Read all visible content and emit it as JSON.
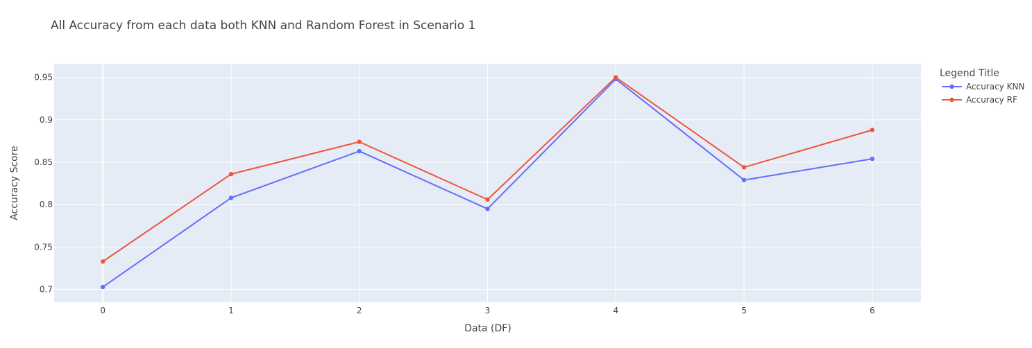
{
  "chart_data": {
    "type": "line",
    "title": "All Accuracy from each data both KNN and Random Forest in Scenario 1",
    "xlabel": "Data (DF)",
    "ylabel": "Accuracy Score",
    "x": [
      0,
      1,
      2,
      3,
      4,
      5,
      6
    ],
    "x_tick_labels": [
      "0",
      "1",
      "2",
      "3",
      "4",
      "5",
      "6"
    ],
    "y_tick_values": [
      0.7,
      0.75,
      0.8,
      0.85,
      0.9,
      0.95
    ],
    "y_tick_labels": [
      "0.7",
      "0.75",
      "0.8",
      "0.85",
      "0.9",
      "0.95"
    ],
    "xlim": [
      -0.38,
      6.38
    ],
    "ylim": [
      0.685,
      0.966
    ],
    "grid": true,
    "legend": {
      "title": "Legend Title",
      "placement": "top-right outside"
    },
    "series": [
      {
        "name": "Accuracy KNN",
        "color": "#636efa",
        "values": [
          0.703,
          0.808,
          0.863,
          0.795,
          0.948,
          0.829,
          0.854
        ]
      },
      {
        "name": "Accuracy RF",
        "color": "#ef553b",
        "values": [
          0.733,
          0.836,
          0.874,
          0.806,
          0.95,
          0.844,
          0.888
        ]
      }
    ],
    "plot_background": "#e5ecf6",
    "grid_color": "#ffffff",
    "text_color": "#2a3f5f"
  }
}
